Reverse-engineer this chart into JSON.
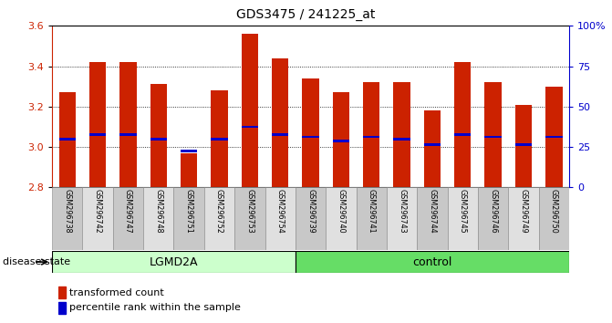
{
  "title": "GDS3475 / 241225_at",
  "samples": [
    "GSM296738",
    "GSM296742",
    "GSM296747",
    "GSM296748",
    "GSM296751",
    "GSM296752",
    "GSM296753",
    "GSM296754",
    "GSM296739",
    "GSM296740",
    "GSM296741",
    "GSM296743",
    "GSM296744",
    "GSM296745",
    "GSM296746",
    "GSM296749",
    "GSM296750"
  ],
  "bar_values": [
    3.27,
    3.42,
    3.42,
    3.31,
    2.97,
    3.28,
    3.56,
    3.44,
    3.34,
    3.27,
    3.32,
    3.32,
    3.18,
    3.42,
    3.32,
    3.21,
    3.3
  ],
  "blue_values": [
    3.04,
    3.06,
    3.06,
    3.04,
    2.98,
    3.04,
    3.1,
    3.06,
    3.05,
    3.03,
    3.05,
    3.04,
    3.01,
    3.06,
    3.05,
    3.01,
    3.05
  ],
  "groups": [
    {
      "label": "LGMD2A",
      "start": 0,
      "end": 8,
      "color": "#ccffcc"
    },
    {
      "label": "control",
      "start": 8,
      "end": 17,
      "color": "#66dd66"
    }
  ],
  "ymin": 2.8,
  "ymax": 3.6,
  "yticks": [
    2.8,
    3.0,
    3.2,
    3.4,
    3.6
  ],
  "bar_color": "#cc2200",
  "blue_color": "#0000cc",
  "background_color": "#ffffff",
  "right_axis_ticks": [
    0,
    25,
    50,
    75,
    100
  ],
  "right_axis_labels": [
    "0",
    "25",
    "50",
    "75",
    "100%"
  ],
  "left_axis_color": "#cc2200",
  "right_axis_color": "#0000cc",
  "grid_lines": [
    3.0,
    3.2,
    3.4
  ],
  "bar_width": 0.55,
  "label_fontsize": 5.8,
  "title_fontsize": 10,
  "axis_fontsize": 8,
  "legend_fontsize": 8,
  "group_fontsize": 9,
  "disease_state_fontsize": 8
}
